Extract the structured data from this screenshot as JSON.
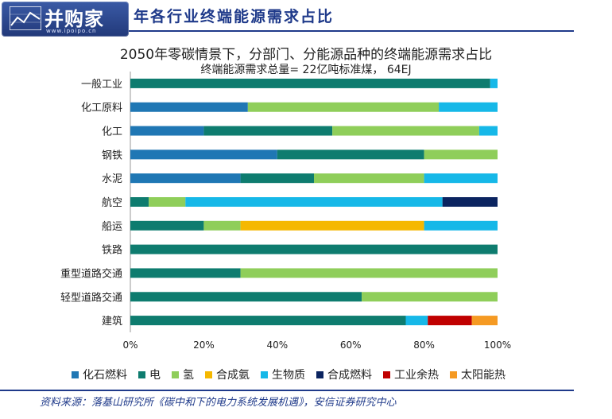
{
  "header": {
    "logo_text": "并购家",
    "logo_sub": "www.ipoipo.cn",
    "title": "年各行业终端能源需求占比"
  },
  "chart_data": {
    "type": "bar",
    "orientation": "horizontal",
    "stacked": true,
    "title": "2050年零碳情景下，分部门、分能源品种的终端能源需求占比",
    "subtitle": "终端能源需求总量= 22亿吨标准煤，  64EJ",
    "categories": [
      "一般工业",
      "化工原料",
      "化工",
      "钢铁",
      "水泥",
      "航空",
      "船运",
      "铁路",
      "重型道路交通",
      "轻型道路交通",
      "建筑"
    ],
    "x_ticks": [
      "0%",
      "20%",
      "40%",
      "60%",
      "80%",
      "100%"
    ],
    "xlim": [
      0,
      100
    ],
    "grid": false,
    "legend_position": "bottom",
    "series": [
      {
        "name": "化石燃料",
        "color": "#1f77b4",
        "values": [
          0,
          32,
          20,
          40,
          30,
          0,
          0,
          0,
          0,
          0,
          0
        ]
      },
      {
        "name": "电",
        "color": "#0e7c6f",
        "values": [
          98,
          0,
          35,
          40,
          20,
          5,
          20,
          100,
          30,
          63,
          75
        ]
      },
      {
        "name": "氢",
        "color": "#8fce5a",
        "values": [
          0,
          52,
          40,
          20,
          30,
          10,
          10,
          0,
          70,
          37,
          0
        ]
      },
      {
        "name": "合成氨",
        "color": "#f5b800",
        "values": [
          0,
          0,
          0,
          0,
          0,
          0,
          50,
          0,
          0,
          0,
          0
        ]
      },
      {
        "name": "生物质",
        "color": "#16b8e8",
        "values": [
          2,
          16,
          5,
          0,
          20,
          70,
          20,
          0,
          0,
          0,
          6
        ]
      },
      {
        "name": "合成燃料",
        "color": "#0b2460",
        "values": [
          0,
          0,
          0,
          0,
          0,
          15,
          0,
          0,
          0,
          0,
          0
        ]
      },
      {
        "name": "工业余热",
        "color": "#c00000",
        "values": [
          0,
          0,
          0,
          0,
          0,
          0,
          0,
          0,
          0,
          0,
          12
        ]
      },
      {
        "name": "太阳能热",
        "color": "#f59a23",
        "values": [
          0,
          0,
          0,
          0,
          0,
          0,
          0,
          0,
          0,
          0,
          7
        ]
      }
    ]
  },
  "source": "资料来源：落基山研究所《碳中和下的电力系统发展机遇》，安信证券研究中心"
}
